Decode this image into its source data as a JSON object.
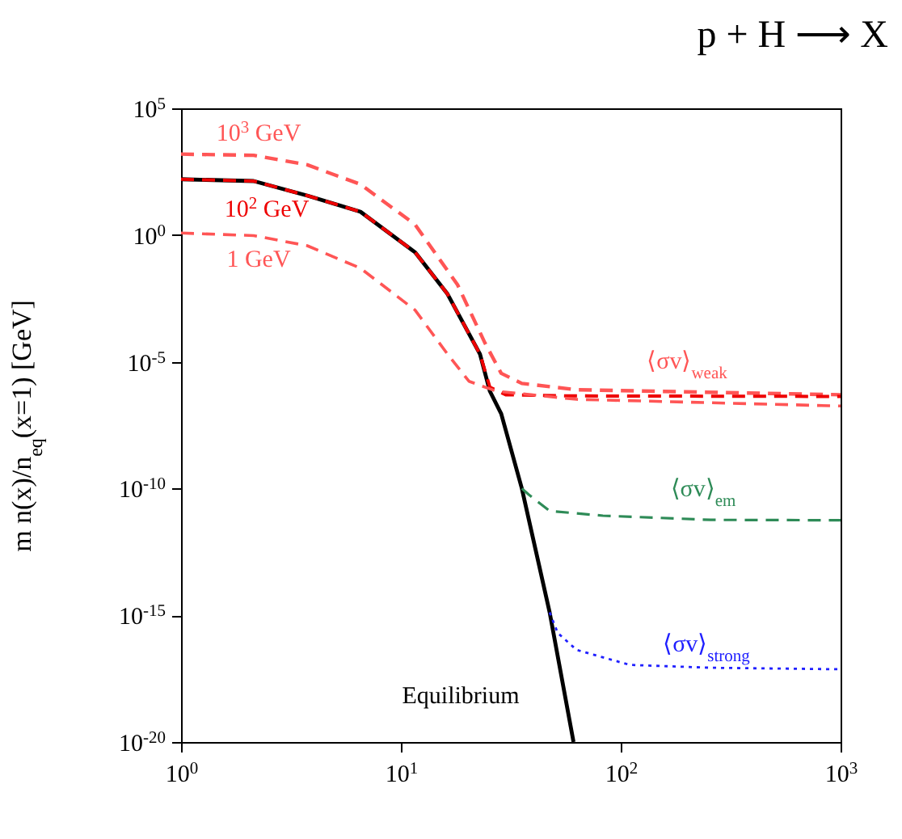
{
  "chart_data": {
    "type": "line",
    "title": "p + H ⟶ X",
    "ylabel": "m n(x)/n$_{eq}$(x=1) [GeV]",
    "log": "xy",
    "grid": false,
    "marker": "none",
    "xlim": [
      1,
      1000
    ],
    "xticks": [
      {
        "value": 1,
        "label": "10$^{0}$"
      },
      {
        "value": 10,
        "label": "10$^{1}$"
      },
      {
        "value": 100,
        "label": "10$^{2}$"
      },
      {
        "value": 1000,
        "label": "10$^{3}$"
      }
    ],
    "ylim": [
      1e-20,
      100000.0
    ],
    "yticks": [
      {
        "value": 1e-20,
        "label": "10$^{-20}$"
      },
      {
        "value": 1e-15,
        "label": "10$^{-15}$"
      },
      {
        "value": 1e-10,
        "label": "10$^{-10}$"
      },
      {
        "value": 1e-05,
        "label": "10$^{-5}$"
      },
      {
        "value": 1,
        "label": "10$^{0}$"
      },
      {
        "value": 100000.0,
        "label": "10$^{5}$"
      }
    ],
    "series": [
      {
        "name": "Equilibrium",
        "color": "#000000",
        "line_style": "solid",
        "x": [
          1,
          2.14,
          3.75,
          6.55,
          11.6,
          16.3,
          22.9,
          25.4,
          28.6,
          35.5,
          47.5,
          61
        ],
        "values": [
          159,
          135,
          36,
          8.3,
          0.21,
          0.0047,
          2e-05,
          6.9e-07,
          8.9e-08,
          1e-10,
          1.3e-15,
          1e-20
        ]
      },
      {
        "name": "10$^{3}$ GeV",
        "color": "#ff5555",
        "line_style": "dashed",
        "x": [
          1,
          2.14,
          3.75,
          6.55,
          11.6,
          18.1,
          24.1,
          28.6,
          35.5,
          63,
          1000
        ],
        "values": [
          1560,
          1400,
          590,
          100,
          2.6,
          0.011,
          5.6e-05,
          3.5e-06,
          1.4e-06,
          7.9e-07,
          5e-07
        ]
      },
      {
        "name": "10$^{2}$ GeV",
        "color": "#ee0000",
        "line_style": "dashed",
        "x": [
          1,
          2.14,
          3.75,
          6.55,
          11.6,
          16.3,
          22.9,
          25.4,
          30,
          60,
          1000
        ],
        "values": [
          159,
          135,
          36,
          8.3,
          0.21,
          0.0047,
          2e-05,
          1e-06,
          5e-07,
          4.5e-07,
          4.3e-07
        ]
      },
      {
        "name": "1 GeV",
        "color": "#ff5555",
        "line_style": "dashed",
        "x": [
          1,
          2.14,
          3.75,
          6.55,
          11.6,
          16.3,
          20.4,
          27.2,
          63,
          1000
        ],
        "values": [
          1.2,
          0.95,
          0.38,
          0.049,
          0.0011,
          2e-05,
          1.7e-06,
          6.9e-07,
          3.3e-07,
          1.8e-07
        ]
      },
      {
        "name": "⟨σv⟩$_{em}$",
        "color": "#2e8b57",
        "line_style": "dashed",
        "x": [
          35.5,
          38.1,
          47.5,
          83,
          257,
          1000
        ],
        "values": [
          1e-10,
          5.8e-11,
          1.3e-11,
          8.5e-12,
          5.8e-12,
          5.6e-12
        ]
      },
      {
        "name": "⟨σv⟩$_{strong}$",
        "color": "#2020ff",
        "line_style": "dotted",
        "x": [
          47.5,
          51.7,
          63,
          110,
          257,
          1000
        ],
        "values": [
          1.3e-15,
          2e-16,
          4.3e-17,
          1.1e-17,
          8.5e-18,
          7.4e-18
        ]
      }
    ],
    "annotations": [
      "⟨σv⟩$_{weak}$"
    ]
  }
}
